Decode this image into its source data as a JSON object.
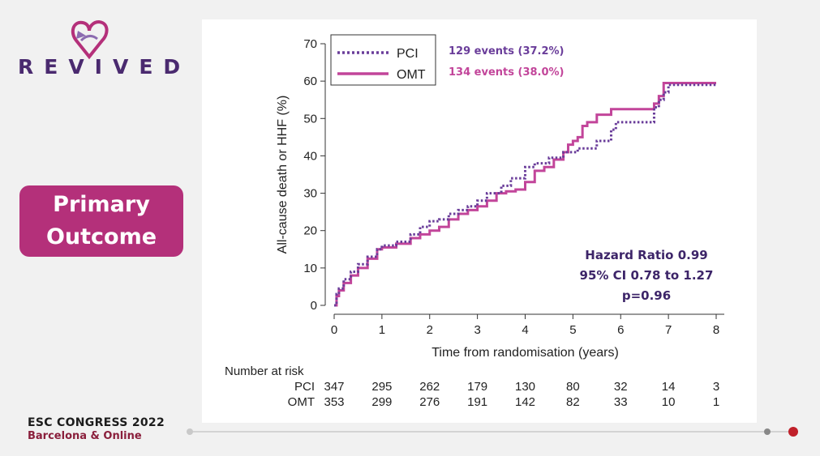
{
  "brand": {
    "logo_text": "REVIVED",
    "colors": {
      "purple": "#4a2a6f",
      "magenta": "#b4307a",
      "lilac": "#8c6bb0"
    }
  },
  "sidebar": {
    "outcome_line1": "Primary",
    "outcome_line2": "Outcome"
  },
  "footer": {
    "title": "ESC CONGRESS 2022",
    "subtitle": "Barcelona & Online",
    "progress_fraction": 1.0
  },
  "chart_data": {
    "type": "line",
    "subtype": "kaplan-meier step curves",
    "xlabel": "Time from randomisation (years)",
    "ylabel": "All-cause death or HHF (%)",
    "xlim": [
      0,
      8
    ],
    "ylim": [
      0,
      70
    ],
    "xticks": [
      0,
      1,
      2,
      3,
      4,
      5,
      6,
      7,
      8
    ],
    "yticks": [
      0,
      10,
      20,
      30,
      40,
      50,
      60,
      70
    ],
    "grid": false,
    "legend_position": "top-left",
    "series": [
      {
        "name": "PCI",
        "style": "dotted",
        "color": "#6a3d9a",
        "events_label": "129 events (37.2%)",
        "points": [
          [
            0,
            0
          ],
          [
            0.05,
            3
          ],
          [
            0.1,
            4.5
          ],
          [
            0.2,
            7
          ],
          [
            0.35,
            9
          ],
          [
            0.5,
            11
          ],
          [
            0.7,
            13
          ],
          [
            0.9,
            15
          ],
          [
            1.0,
            16
          ],
          [
            1.3,
            17
          ],
          [
            1.6,
            19
          ],
          [
            1.8,
            21
          ],
          [
            2.0,
            22.5
          ],
          [
            2.2,
            23
          ],
          [
            2.4,
            24.5
          ],
          [
            2.6,
            25.5
          ],
          [
            2.8,
            26.5
          ],
          [
            3.0,
            28
          ],
          [
            3.2,
            30
          ],
          [
            3.5,
            32
          ],
          [
            3.7,
            34
          ],
          [
            4.0,
            37
          ],
          [
            4.2,
            38
          ],
          [
            4.5,
            39.5
          ],
          [
            4.8,
            41
          ],
          [
            5.0,
            41
          ],
          [
            5.1,
            42
          ],
          [
            5.3,
            42
          ],
          [
            5.5,
            44
          ],
          [
            5.7,
            44
          ],
          [
            5.8,
            47
          ],
          [
            5.9,
            49
          ],
          [
            6.6,
            49
          ],
          [
            6.7,
            53
          ],
          [
            6.8,
            55
          ],
          [
            6.9,
            57
          ],
          [
            7.0,
            59
          ],
          [
            7.5,
            59
          ],
          [
            8.0,
            59
          ]
        ]
      },
      {
        "name": "OMT",
        "style": "solid",
        "color": "#c2459a",
        "events_label": "134 events (38.0%)",
        "points": [
          [
            0,
            0
          ],
          [
            0.05,
            2.5
          ],
          [
            0.1,
            4
          ],
          [
            0.2,
            6
          ],
          [
            0.35,
            8
          ],
          [
            0.5,
            10
          ],
          [
            0.7,
            12.5
          ],
          [
            0.9,
            15
          ],
          [
            1.0,
            15.5
          ],
          [
            1.3,
            16.5
          ],
          [
            1.6,
            18
          ],
          [
            1.8,
            19
          ],
          [
            2.0,
            20
          ],
          [
            2.2,
            21
          ],
          [
            2.4,
            23
          ],
          [
            2.6,
            24.5
          ],
          [
            2.8,
            25.5
          ],
          [
            3.0,
            26.5
          ],
          [
            3.2,
            28
          ],
          [
            3.4,
            30
          ],
          [
            3.6,
            30.5
          ],
          [
            3.8,
            31
          ],
          [
            4.0,
            33
          ],
          [
            4.2,
            36
          ],
          [
            4.4,
            37
          ],
          [
            4.6,
            39
          ],
          [
            4.8,
            41
          ],
          [
            4.9,
            43
          ],
          [
            5.0,
            44
          ],
          [
            5.1,
            45
          ],
          [
            5.2,
            48
          ],
          [
            5.3,
            49
          ],
          [
            5.5,
            51
          ],
          [
            5.6,
            51
          ],
          [
            5.8,
            52.5
          ],
          [
            6.6,
            52.5
          ],
          [
            6.7,
            54
          ],
          [
            6.8,
            56
          ],
          [
            6.9,
            59.5
          ],
          [
            7.5,
            59.5
          ],
          [
            8.0,
            59.5
          ]
        ]
      }
    ],
    "annotation": {
      "line1": "Hazard Ratio 0.99",
      "line2": "95% CI 0.78 to 1.27",
      "line3": "p=0.96"
    },
    "risk_table": {
      "title": "Number at risk",
      "times": [
        0,
        1,
        2,
        3,
        4,
        5,
        6,
        7,
        8
      ],
      "rows": [
        {
          "label": "PCI",
          "values": [
            "347",
            "295",
            "262",
            "179",
            "130",
            "80",
            "32",
            "14",
            "3"
          ]
        },
        {
          "label": "OMT",
          "values": [
            "353",
            "299",
            "276",
            "191",
            "142",
            "82",
            "33",
            "10",
            "1"
          ]
        }
      ]
    }
  }
}
